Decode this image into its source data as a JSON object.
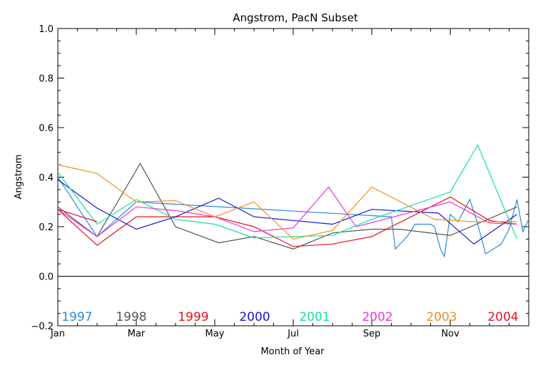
{
  "chart_data": {
    "type": "line",
    "title": "Angstrom, PacN Subset",
    "xlabel": "Month of Year",
    "ylabel": "Angstrom",
    "xlim": [
      1,
      13
    ],
    "ylim": [
      -0.2,
      1.0
    ],
    "xticks": [
      {
        "x": 1,
        "label": "Jan"
      },
      {
        "x": 3,
        "label": "Mar"
      },
      {
        "x": 5,
        "label": "May"
      },
      {
        "x": 7,
        "label": "Jul"
      },
      {
        "x": 9,
        "label": "Sep"
      },
      {
        "x": 11,
        "label": "Nov"
      }
    ],
    "yticks": [
      {
        "y": -0.2,
        "label": "−0.2"
      },
      {
        "y": 0.0,
        "label": "0.0"
      },
      {
        "y": 0.2,
        "label": "0.2"
      },
      {
        "y": 0.4,
        "label": "0.4"
      },
      {
        "y": 0.6,
        "label": "0.6"
      },
      {
        "y": 0.8,
        "label": "0.8"
      },
      {
        "y": 1.0,
        "label": "1.0"
      }
    ],
    "reference_line_y": 0.0,
    "grid": false,
    "legend_placement": "bottom inside plot",
    "series": [
      {
        "name": "1997",
        "color": "#2a8bd8",
        "points": [
          [
            1,
            0.4
          ],
          [
            2,
            0.16
          ],
          [
            3,
            0.3
          ],
          [
            9.5,
            0.24
          ],
          [
            9.6,
            0.11
          ],
          [
            9.9,
            0.16
          ],
          [
            10.1,
            0.21
          ],
          [
            10.5,
            0.21
          ],
          [
            10.6,
            0.2
          ],
          [
            10.75,
            0.11
          ],
          [
            10.85,
            0.08
          ],
          [
            11.0,
            0.25
          ],
          [
            11.2,
            0.22
          ],
          [
            11.5,
            0.31
          ],
          [
            11.7,
            0.21
          ],
          [
            11.9,
            0.09
          ],
          [
            12.1,
            0.11
          ],
          [
            12.3,
            0.13
          ],
          [
            12.5,
            0.19
          ],
          [
            12.7,
            0.31
          ],
          [
            12.85,
            0.18
          ],
          [
            13.0,
            0.23
          ]
        ]
      },
      {
        "name": "1998",
        "color": "#555555",
        "points": [
          [
            1,
            0.28
          ],
          [
            2,
            0.16
          ],
          [
            3.1,
            0.455
          ],
          [
            4,
            0.2
          ],
          [
            5.1,
            0.135
          ],
          [
            6,
            0.16
          ],
          [
            7,
            0.11
          ],
          [
            8,
            0.175
          ],
          [
            9,
            0.19
          ],
          [
            9.7,
            0.19
          ],
          [
            11,
            0.165
          ],
          [
            12.7,
            0.28
          ]
        ]
      },
      {
        "name": "1999",
        "color": "#e8101a",
        "points": [
          [
            1,
            0.27
          ],
          [
            2,
            0.125
          ],
          [
            3,
            0.24
          ],
          [
            4,
            0.24
          ],
          [
            5,
            0.24
          ],
          [
            6,
            0.2
          ],
          [
            7,
            0.12
          ],
          [
            8,
            0.13
          ],
          [
            9,
            0.16
          ],
          [
            11,
            0.32
          ],
          [
            12,
            0.225
          ],
          [
            12.7,
            0.21
          ]
        ]
      },
      {
        "name": "2000",
        "color": "#1414d4",
        "points": [
          [
            1,
            0.39
          ],
          [
            2,
            0.275
          ],
          [
            3,
            0.19
          ],
          [
            4,
            0.24
          ],
          [
            5.1,
            0.315
          ],
          [
            6,
            0.24
          ],
          [
            7,
            0.225
          ],
          [
            8,
            0.21
          ],
          [
            9,
            0.27
          ],
          [
            10.7,
            0.255
          ],
          [
            11.6,
            0.13
          ],
          [
            12.7,
            0.25
          ]
        ]
      },
      {
        "name": "2001",
        "color": "#12e29a",
        "points": [
          [
            1,
            0.42
          ],
          [
            2,
            0.21
          ],
          [
            3,
            0.31
          ],
          [
            4,
            0.23
          ],
          [
            5,
            0.21
          ],
          [
            6,
            0.155
          ],
          [
            7,
            0.16
          ],
          [
            8,
            0.165
          ],
          [
            9,
            0.23
          ],
          [
            11,
            0.34
          ],
          [
            11.7,
            0.53
          ],
          [
            12.7,
            0.15
          ]
        ]
      },
      {
        "name": "2002",
        "color": "#e835e0",
        "points": [
          [
            1,
            0.27
          ],
          [
            2,
            0.16
          ],
          [
            3,
            0.28
          ],
          [
            4,
            0.265
          ],
          [
            5,
            0.24
          ],
          [
            6,
            0.18
          ],
          [
            7,
            0.195
          ],
          [
            7.9,
            0.36
          ],
          [
            8.6,
            0.2
          ],
          [
            11,
            0.3
          ],
          [
            12,
            0.215
          ],
          [
            12.7,
            0.21
          ]
        ]
      },
      {
        "name": "2003",
        "color": "#f0901e",
        "points": [
          [
            1,
            0.45
          ],
          [
            2,
            0.415
          ],
          [
            3,
            0.3
          ],
          [
            4,
            0.305
          ],
          [
            5,
            0.24
          ],
          [
            6,
            0.3
          ],
          [
            7,
            0.15
          ],
          [
            8,
            0.185
          ],
          [
            9,
            0.36
          ],
          [
            10.6,
            0.23
          ],
          [
            11.6,
            0.22
          ],
          [
            12.7,
            0.22
          ]
        ]
      },
      {
        "name": "2004",
        "color": "#e8102a",
        "points": [
          [
            1,
            0.27
          ],
          [
            2,
            0.22
          ]
        ]
      }
    ]
  }
}
